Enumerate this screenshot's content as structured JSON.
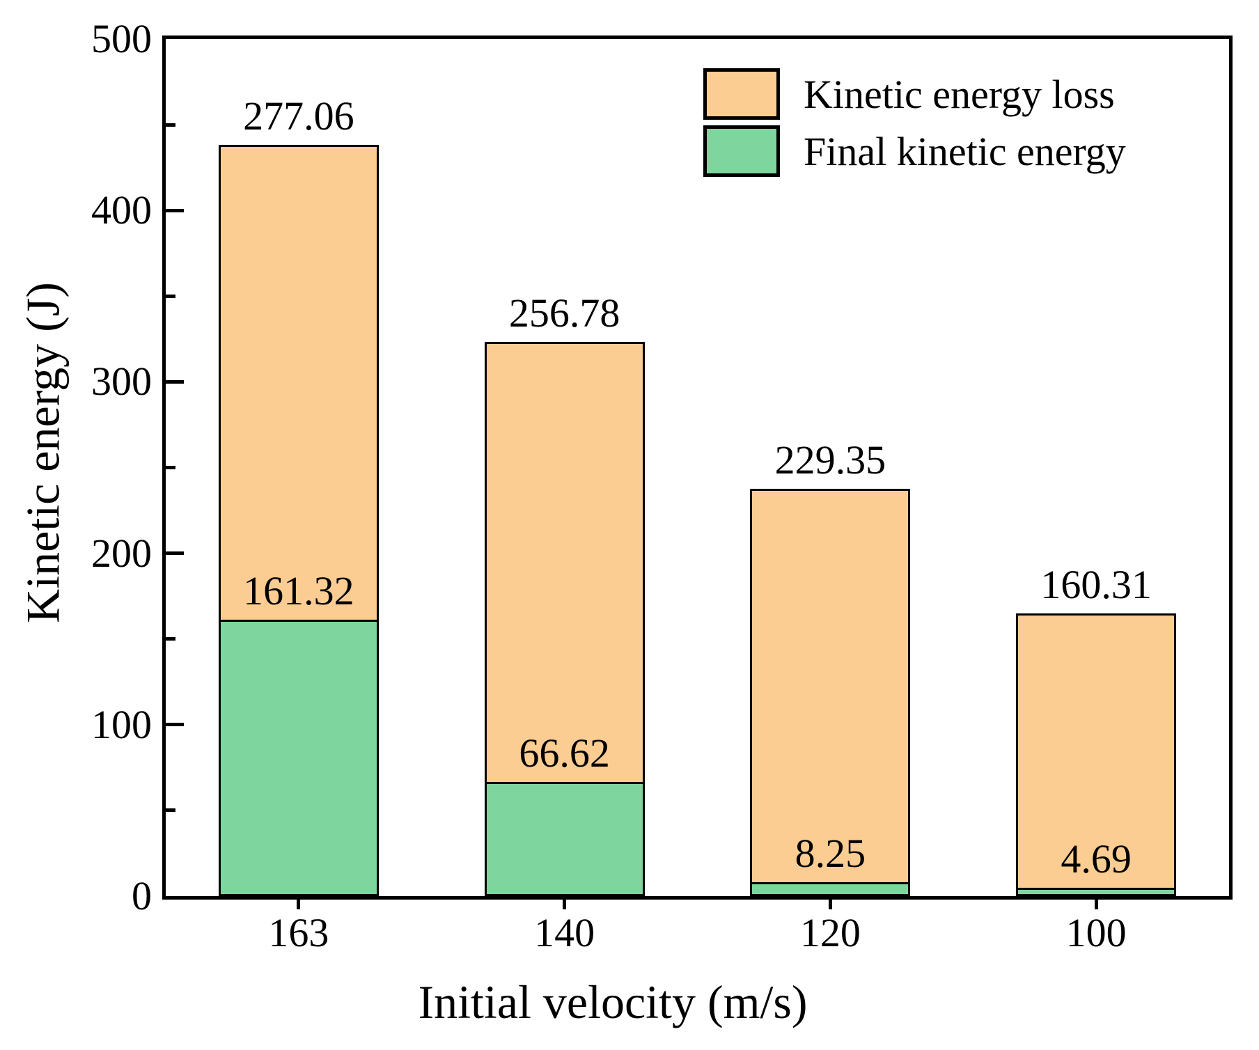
{
  "chart_data": {
    "type": "bar",
    "stacked": true,
    "title": "",
    "xlabel": "Initial velocity (m/s)",
    "ylabel": "Kinetic energy (J)",
    "categories": [
      "163",
      "140",
      "120",
      "100"
    ],
    "series": [
      {
        "name": "Kinetic energy loss",
        "color": "#FCCD92",
        "values": [
          277.06,
          256.78,
          229.35,
          160.31
        ],
        "labels": [
          "277.06",
          "256.78",
          "229.35",
          "160.31"
        ],
        "label_position": "above-segment-top"
      },
      {
        "name": "Final kinetic energy",
        "color": "#7ED69E",
        "values": [
          161.32,
          66.62,
          8.25,
          4.69
        ],
        "labels": [
          "161.32",
          "66.62",
          "8.25",
          "4.69"
        ],
        "label_position": "above-segment-top"
      }
    ],
    "ylim": [
      0,
      500
    ],
    "y_major_ticks": [
      0,
      100,
      200,
      300,
      400,
      500
    ],
    "y_minor_ticks": [
      50,
      150,
      250,
      350,
      450
    ],
    "tick_direction": "in",
    "grid": false,
    "legend_position": "top-right-inside",
    "axis_color": "#000000",
    "text_color": "#000000",
    "bar_border_color": "#000000"
  }
}
